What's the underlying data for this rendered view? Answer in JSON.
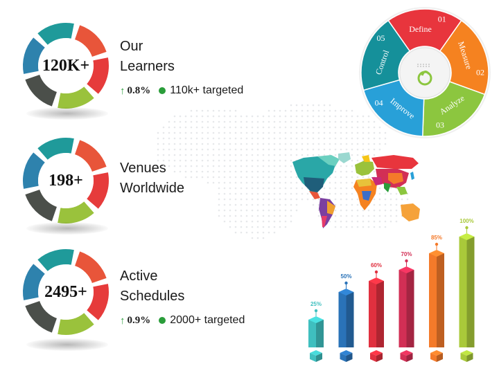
{
  "stats": [
    {
      "value": "120K+",
      "title_line1": "Our",
      "title_line2": "Learners",
      "change": "0.8%",
      "target": "110k+ targeted"
    },
    {
      "value": "198+",
      "title_line1": "Venues",
      "title_line2": "Worldwide"
    },
    {
      "value": "2495+",
      "title_line1": "Active",
      "title_line2": "Schedules",
      "change": "0.9%",
      "target": "2000+ targeted"
    }
  ],
  "ring_colors": [
    "#e8553a",
    "#e63b3b",
    "#9ac23c",
    "#4b4f4a",
    "#2e82ad",
    "#1f9a9a"
  ],
  "icons": {
    "trend": "up-arrow-icon",
    "target": "green-dot-icon"
  },
  "wheel": {
    "segments": [
      {
        "label": "Define",
        "number": "01",
        "color": "#e8353d"
      },
      {
        "label": "Measure",
        "number": "02",
        "color": "#f58220"
      },
      {
        "label": "Analyze",
        "number": "03",
        "color": "#8cc63f"
      },
      {
        "label": "Improve",
        "number": "04",
        "color": "#28a0d8"
      },
      {
        "label": "Control",
        "number": "05",
        "color": "#15909a"
      }
    ],
    "center_icon": "gear-logo-icon"
  },
  "chart_data": {
    "type": "bar",
    "categories": [
      "",
      "",
      "",
      "",
      "",
      ""
    ],
    "values": [
      25,
      50,
      60,
      70,
      85,
      100
    ],
    "data_labels": [
      "25%",
      "50%",
      "60%",
      "70%",
      "85%",
      "100%"
    ],
    "colors": [
      "#3fbfbf",
      "#2a73b8",
      "#e0303f",
      "#d22f55",
      "#f47a2a",
      "#a9c93a"
    ],
    "ylim": [
      0,
      100
    ],
    "grid": false,
    "style": "3d-cylinder"
  }
}
